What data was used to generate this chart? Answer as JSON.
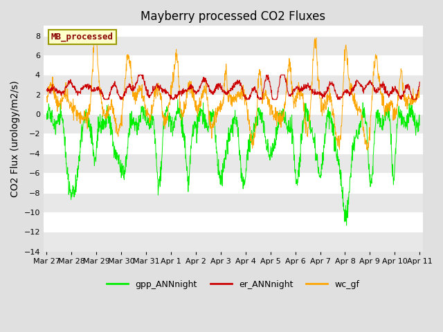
{
  "title": "Mayberry processed CO2 Fluxes",
  "ylabel": "CO2 Flux (urology/m2/s)",
  "ylim": [
    -14,
    9
  ],
  "yticks": [
    -14,
    -12,
    -10,
    -8,
    -6,
    -4,
    -2,
    0,
    2,
    4,
    6,
    8
  ],
  "xtick_labels": [
    "Mar 27",
    "Mar 28",
    "Mar 29",
    "Mar 30",
    "Mar 31",
    "Apr 1",
    "Apr 2",
    "Apr 3",
    "Apr 4",
    "Apr 5",
    "Apr 6",
    "Apr 7",
    "Apr 8",
    "Apr 9",
    "Apr 10",
    "Apr 11"
  ],
  "legend_entries": [
    "gpp_ANNnight",
    "er_ANNnight",
    "wc_gf"
  ],
  "line_colors": [
    "#00ee00",
    "#cc0000",
    "#ffa500"
  ],
  "legend_label": "MB_processed",
  "legend_label_color": "#880000",
  "legend_box_facecolor": "#ffffcc",
  "legend_box_edgecolor": "#999900",
  "title_fontsize": 12,
  "axis_fontsize": 10,
  "tick_fontsize": 8,
  "background_color": "#e0e0e0",
  "plot_bg_color": "#ffffff",
  "band_color": "#e8e8e8",
  "n_points": 1440
}
